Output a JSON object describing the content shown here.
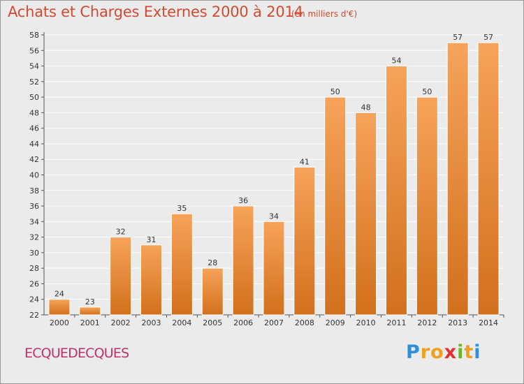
{
  "chart_data": {
    "type": "bar",
    "title": "Achats et Charges Externes 2000 à 2014",
    "subtitle": "(en milliers d'€)",
    "categories": [
      "2000",
      "2001",
      "2002",
      "2003",
      "2004",
      "2005",
      "2006",
      "2007",
      "2008",
      "2009",
      "2010",
      "2011",
      "2012",
      "2013",
      "2014"
    ],
    "values": [
      24,
      23,
      32,
      31,
      35,
      28,
      36,
      34,
      41,
      50,
      48,
      54,
      50,
      57,
      57
    ],
    "xlabel": "",
    "ylabel": "",
    "ylim": [
      22,
      58
    ],
    "yticks": [
      22,
      24,
      26,
      28,
      30,
      32,
      34,
      36,
      38,
      40,
      42,
      44,
      46,
      48,
      50,
      52,
      54,
      56,
      58
    ],
    "grid": true,
    "legend": "none",
    "colors": {
      "bar_light": "#f7a35a",
      "bar_dark": "#d2701c",
      "grid": "#ffffff",
      "title": "#d24a32"
    }
  },
  "commune": "ECQUEDECQUES",
  "logo": {
    "letters": [
      "P",
      "r",
      "o",
      "x",
      "i",
      "t",
      "i"
    ],
    "colors": [
      "#2f8fd8",
      "#f0a020",
      "#f0a020",
      "#e03030",
      "#6fb52c",
      "#f0a020",
      "#2f8fd8"
    ]
  }
}
